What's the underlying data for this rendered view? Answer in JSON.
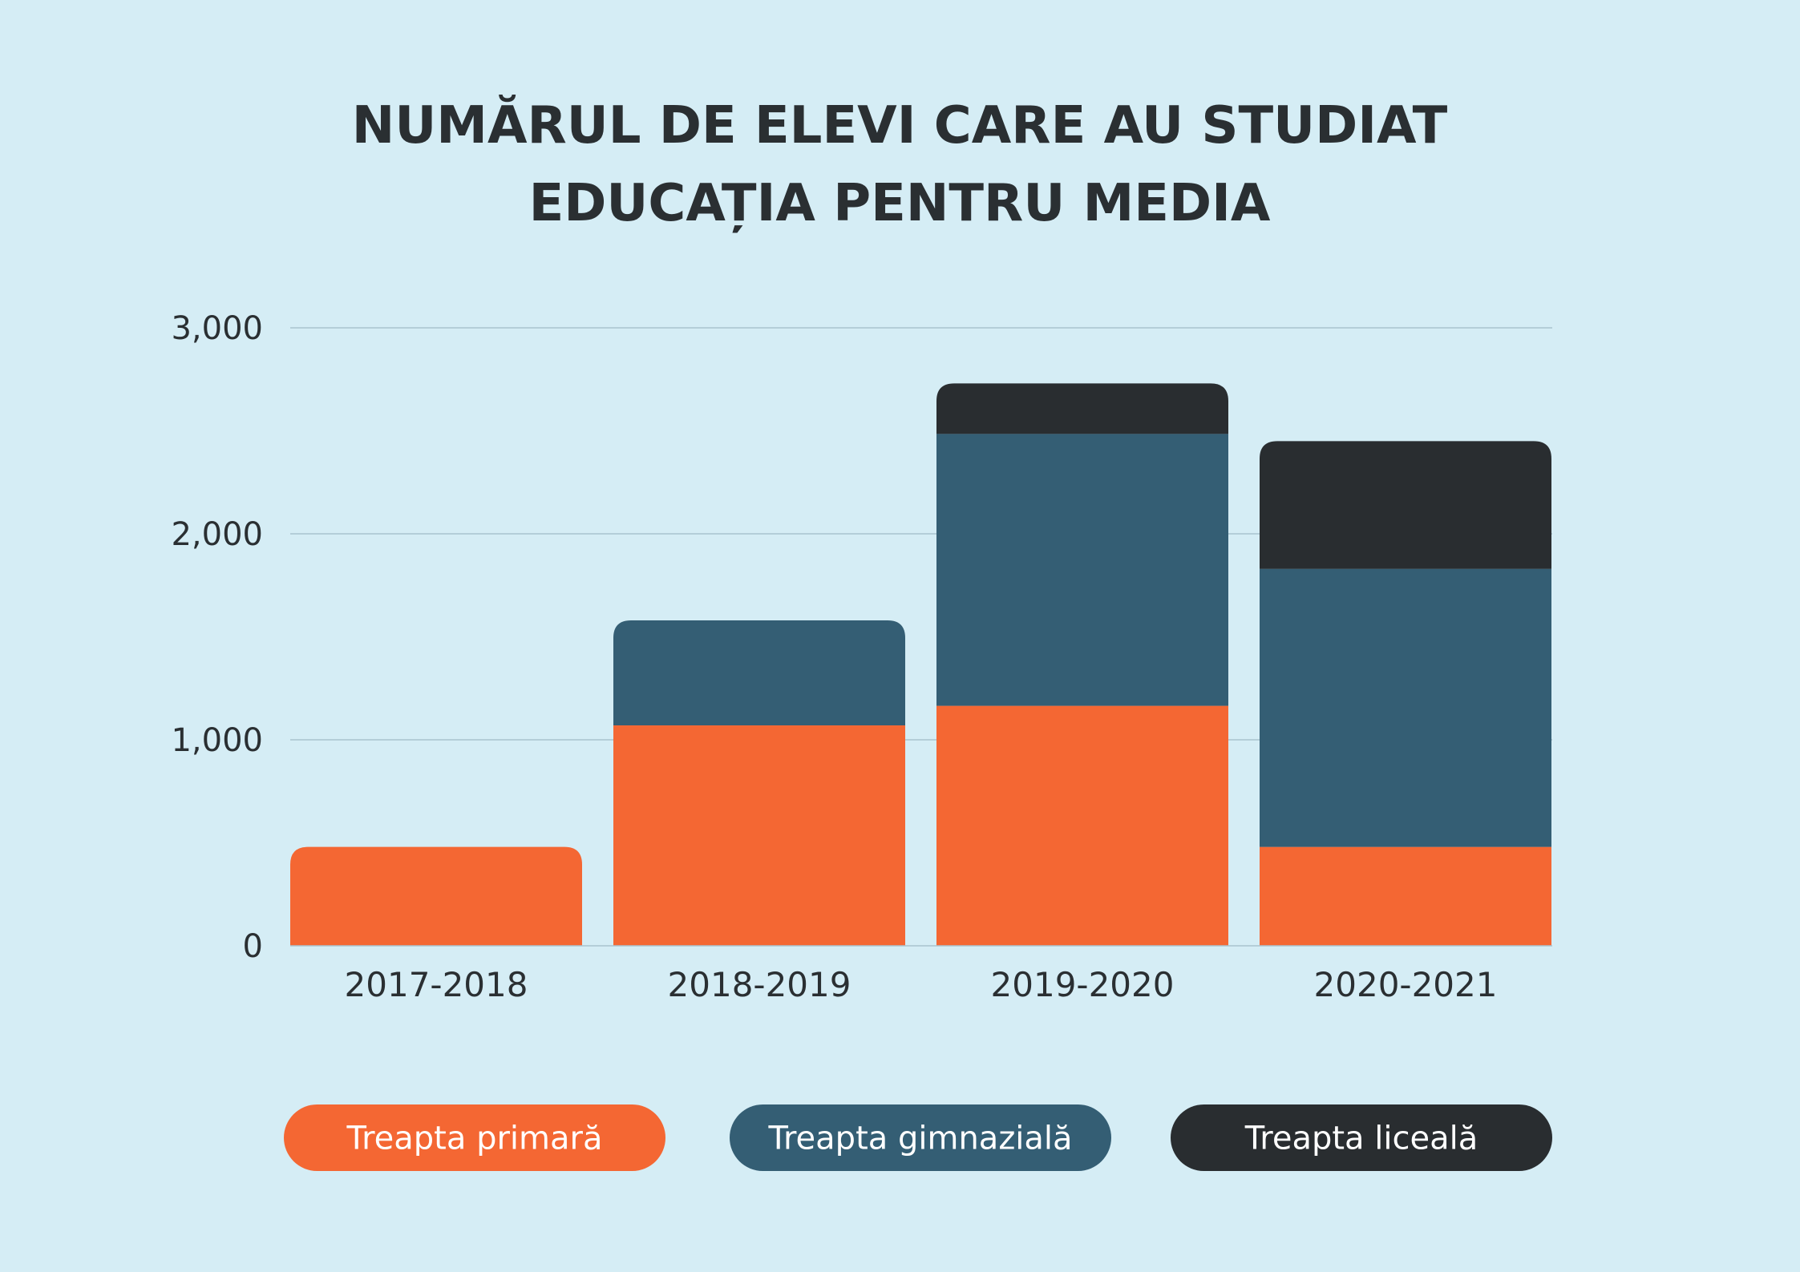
{
  "colors": {
    "background": "#d5edf5",
    "text": "#2a2f32",
    "grid": "#a9c3cf",
    "legend_text": "#ffffff"
  },
  "chart_data": {
    "type": "bar",
    "stacked": true,
    "title_lines": [
      "NUMĂRUL DE ELEVI CARE AU STUDIAT",
      "EDUCAȚIA PENTRU MEDIA"
    ],
    "xlabel": "",
    "ylabel": "",
    "categories": [
      "2017-2018",
      "2018-2019",
      "2019-2020",
      "2020-2021"
    ],
    "series": [
      {
        "name": "Treapta primară",
        "color": "#f46733",
        "values": [
          480,
          1070,
          1165,
          480
        ]
      },
      {
        "name": "Treapta gimnazială",
        "color": "#345e74",
        "values": [
          0,
          510,
          1320,
          1350
        ]
      },
      {
        "name": "Treapta liceală",
        "color": "#292d30",
        "values": [
          0,
          0,
          245,
          620
        ]
      }
    ],
    "ylim": [
      0,
      3000
    ],
    "yticks": [
      0,
      1000,
      2000,
      3000
    ],
    "ytick_labels": [
      "0",
      "1,000",
      "2,000",
      "3,000"
    ],
    "grid": true,
    "legend_position": "bottom"
  }
}
